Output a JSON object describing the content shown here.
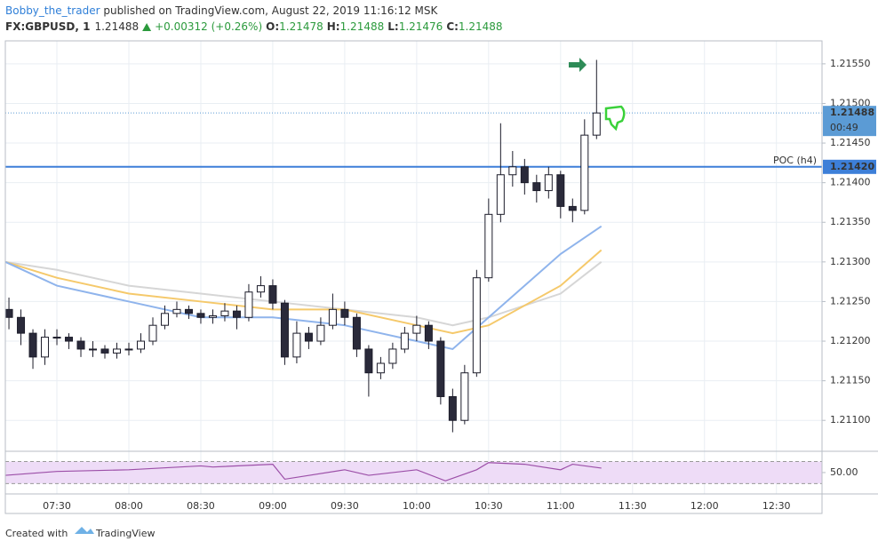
{
  "header": {
    "author": "Bobby_the_trader",
    "published": " published on TradingView.com, August 22, 2019 11:16:12 MSK",
    "symbol": "FX:GBPUSD, 1",
    "last": "1.21488",
    "change": "+0.00312 (+0.26%)",
    "o_label": "O:",
    "o": "1.21478",
    "h_label": "H:",
    "h": "1.21488",
    "l_label": "L:",
    "l": "1.21476",
    "c_label": "C:",
    "c": "1.21488"
  },
  "chart_data": {
    "type": "candlestick",
    "x": [
      430,
      435,
      440,
      445,
      450,
      455,
      460,
      465,
      470,
      475,
      480,
      485,
      490,
      495,
      500,
      505,
      510,
      515,
      520,
      525,
      530,
      535,
      540,
      545,
      550,
      555,
      560,
      565,
      570,
      575,
      580,
      585,
      590,
      595,
      600,
      605,
      610,
      615,
      620,
      625,
      630,
      635,
      640,
      645,
      650,
      655,
      660,
      665,
      670,
      675
    ],
    "open": [
      1.2124,
      1.2123,
      1.2121,
      1.2118,
      1.21205,
      1.21205,
      1.212,
      1.2119,
      1.2119,
      1.21185,
      1.2119,
      1.2119,
      1.212,
      1.2122,
      1.21235,
      1.2124,
      1.21235,
      1.2123,
      1.21232,
      1.21238,
      1.2123,
      1.21262,
      1.2127,
      1.21248,
      1.2118,
      1.2121,
      1.212,
      1.2122,
      1.2124,
      1.2123,
      1.2119,
      1.2116,
      1.21172,
      1.2119,
      1.2121,
      1.2122,
      1.212,
      1.2113,
      1.211,
      1.2116,
      1.2128,
      1.2136,
      1.2141,
      1.2142,
      1.214,
      1.2139,
      1.2141,
      1.2137,
      1.21365,
      1.2146
    ],
    "high": [
      1.21255,
      1.2124,
      1.21215,
      1.21215,
      1.21215,
      1.2121,
      1.21205,
      1.212,
      1.21195,
      1.21198,
      1.21198,
      1.2121,
      1.2123,
      1.21245,
      1.2125,
      1.21245,
      1.2124,
      1.2124,
      1.21248,
      1.21245,
      1.21272,
      1.21282,
      1.21278,
      1.21252,
      1.21225,
      1.21218,
      1.2123,
      1.2126,
      1.2125,
      1.21235,
      1.21195,
      1.2118,
      1.21198,
      1.21218,
      1.21232,
      1.21225,
      1.21205,
      1.2114,
      1.2117,
      1.2129,
      1.2138,
      1.21475,
      1.2144,
      1.2143,
      1.2141,
      1.2142,
      1.21415,
      1.2138,
      1.2148,
      1.21555
    ],
    "low": [
      1.21215,
      1.21195,
      1.21165,
      1.2117,
      1.21195,
      1.2119,
      1.2118,
      1.2118,
      1.21178,
      1.21178,
      1.21182,
      1.21185,
      1.21195,
      1.21215,
      1.2123,
      1.21228,
      1.21222,
      1.21222,
      1.21225,
      1.21215,
      1.21225,
      1.21255,
      1.2124,
      1.2117,
      1.21172,
      1.2119,
      1.21195,
      1.21215,
      1.2122,
      1.2118,
      1.2113,
      1.21152,
      1.21165,
      1.21185,
      1.212,
      1.2119,
      1.2112,
      1.21085,
      1.21095,
      1.21155,
      1.21275,
      1.2135,
      1.21395,
      1.21385,
      1.21375,
      1.2138,
      1.21355,
      1.2135,
      1.2136,
      1.21455
    ],
    "close": [
      1.2123,
      1.2121,
      1.2118,
      1.21205,
      1.21205,
      1.212,
      1.2119,
      1.2119,
      1.21185,
      1.2119,
      1.2119,
      1.212,
      1.2122,
      1.21235,
      1.2124,
      1.21235,
      1.2123,
      1.21232,
      1.21238,
      1.2123,
      1.21262,
      1.2127,
      1.21248,
      1.2118,
      1.2121,
      1.212,
      1.2122,
      1.2124,
      1.2123,
      1.2119,
      1.2116,
      1.21172,
      1.2119,
      1.2121,
      1.2122,
      1.212,
      1.2113,
      1.211,
      1.2116,
      1.2128,
      1.2136,
      1.2141,
      1.2142,
      1.214,
      1.2139,
      1.2141,
      1.2137,
      1.21365,
      1.2146,
      1.21488
    ],
    "up_color": "#ffffff",
    "down_color": "#2a2a3a",
    "outline_color": "#1c1c2a",
    "xlim": [
      428.5,
      769
    ],
    "xticks": [
      {
        "value": 450,
        "label": "07:30"
      },
      {
        "value": 480,
        "label": "08:00"
      },
      {
        "value": 510,
        "label": "08:30"
      },
      {
        "value": 540,
        "label": "09:00"
      },
      {
        "value": 570,
        "label": "09:30"
      },
      {
        "value": 600,
        "label": "10:00"
      },
      {
        "value": 630,
        "label": "10:30"
      },
      {
        "value": 660,
        "label": "11:00"
      },
      {
        "value": 690,
        "label": "11:30"
      },
      {
        "value": 720,
        "label": "12:00"
      },
      {
        "value": 750,
        "label": "12:30"
      }
    ],
    "ylim": [
      1.21061,
      1.21579
    ],
    "yticks": [
      {
        "value": 1.211,
        "label": "1.21100"
      },
      {
        "value": 1.2115,
        "label": "1.21150"
      },
      {
        "value": 1.212,
        "label": "1.21200"
      },
      {
        "value": 1.2125,
        "label": "1.21250"
      },
      {
        "value": 1.213,
        "label": "1.21300"
      },
      {
        "value": 1.2135,
        "label": "1.21350"
      },
      {
        "value": 1.214,
        "label": "1.21400"
      },
      {
        "value": 1.2145,
        "label": "1.21450"
      },
      {
        "value": 1.215,
        "label": "1.21500"
      },
      {
        "value": 1.2155,
        "label": "1.21550"
      }
    ],
    "grid": true,
    "moving_averages": [
      {
        "color": "#d6d6d6",
        "x": [
          428.5,
          450,
          480,
          510,
          540,
          570,
          600,
          615,
          630,
          660,
          677
        ],
        "values": [
          1.213,
          1.2129,
          1.2127,
          1.2126,
          1.2125,
          1.2124,
          1.2123,
          1.2122,
          1.2123,
          1.2126,
          1.213
        ]
      },
      {
        "color": "#f5c96b",
        "x": [
          428.5,
          450,
          480,
          510,
          540,
          570,
          600,
          615,
          630,
          660,
          677
        ],
        "values": [
          1.213,
          1.2128,
          1.2126,
          1.2125,
          1.2124,
          1.2124,
          1.2122,
          1.2121,
          1.2122,
          1.2127,
          1.21315
        ]
      },
      {
        "color": "#8fb4ec",
        "x": [
          428.5,
          450,
          480,
          510,
          540,
          570,
          600,
          615,
          630,
          660,
          677
        ],
        "values": [
          1.213,
          1.2127,
          1.2125,
          1.2123,
          1.2123,
          1.2122,
          1.212,
          1.2119,
          1.2123,
          1.2131,
          1.21345
        ]
      }
    ],
    "current_price": {
      "value": 1.21488,
      "label": "1.21488",
      "countdown": "00:49",
      "color": "#5b9bd5"
    },
    "poc": {
      "name": "POC (h4)",
      "value": 1.2142,
      "label": "1.21420",
      "color": "#3d7fd8"
    },
    "rsi": {
      "color": "#9c4fa8",
      "band_color": "#eedcf7",
      "x": [
        428.5,
        450,
        480,
        510,
        515,
        540,
        545,
        570,
        580,
        600,
        612,
        625,
        630,
        645,
        660,
        665,
        677
      ],
      "values": [
        45,
        52,
        55,
        62,
        60,
        65,
        38,
        55,
        45,
        55,
        35,
        55,
        68,
        65,
        55,
        65,
        58
      ],
      "ylim": [
        21,
        82
      ],
      "yticks": [
        {
          "value": 50,
          "label": "50.00"
        }
      ],
      "bands": [
        30,
        70
      ]
    }
  },
  "footer": {
    "created": "Created with",
    "brand": "TradingView"
  }
}
